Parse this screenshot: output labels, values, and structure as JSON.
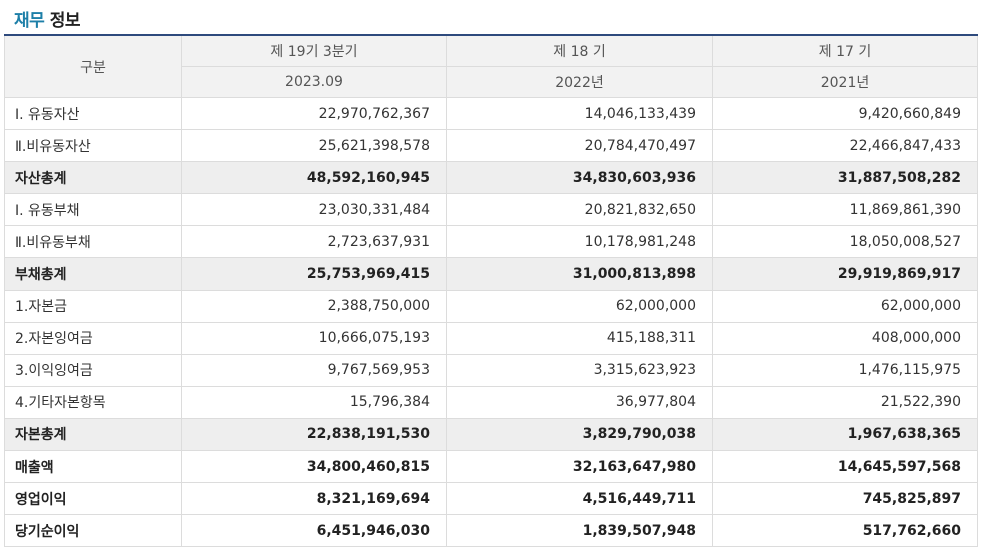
{
  "section_title": {
    "accent": "재무",
    "rest": " 정보"
  },
  "table": {
    "corner_label": "구분",
    "periods": [
      {
        "name": "제 19기 3분기",
        "date": "2023.09"
      },
      {
        "name": "제 18 기",
        "date": "2022년"
      },
      {
        "name": "제 17 기",
        "date": "2021년"
      }
    ],
    "rows": [
      {
        "label": "Ⅰ. 유동자산",
        "values": [
          "22,970,762,367",
          "14,046,133,439",
          "9,420,660,849"
        ],
        "style": "normal"
      },
      {
        "label": "Ⅱ.비유동자산",
        "values": [
          "25,621,398,578",
          "20,784,470,497",
          "22,466,847,433"
        ],
        "style": "normal"
      },
      {
        "label": "자산총계",
        "values": [
          "48,592,160,945",
          "34,830,603,936",
          "31,887,508,282"
        ],
        "style": "total"
      },
      {
        "label": "Ⅰ. 유동부채",
        "values": [
          "23,030,331,484",
          "20,821,832,650",
          "11,869,861,390"
        ],
        "style": "normal"
      },
      {
        "label": "Ⅱ.비유동부채",
        "values": [
          "2,723,637,931",
          "10,178,981,248",
          "18,050,008,527"
        ],
        "style": "normal"
      },
      {
        "label": "부채총계",
        "values": [
          "25,753,969,415",
          "31,000,813,898",
          "29,919,869,917"
        ],
        "style": "total"
      },
      {
        "label": "1.자본금",
        "values": [
          "2,388,750,000",
          "62,000,000",
          "62,000,000"
        ],
        "style": "normal"
      },
      {
        "label": "2.자본잉여금",
        "values": [
          "10,666,075,193",
          "415,188,311",
          "408,000,000"
        ],
        "style": "normal"
      },
      {
        "label": "3.이익잉여금",
        "values": [
          "9,767,569,953",
          "3,315,623,923",
          "1,476,115,975"
        ],
        "style": "normal"
      },
      {
        "label": "4.기타자본항목",
        "values": [
          "15,796,384",
          "36,977,804",
          "21,522,390"
        ],
        "style": "normal"
      },
      {
        "label": "자본총계",
        "values": [
          "22,838,191,530",
          "3,829,790,038",
          "1,967,638,365"
        ],
        "style": "total"
      },
      {
        "label": "매출액",
        "values": [
          "34,800,460,815",
          "32,163,647,980",
          "14,645,597,568"
        ],
        "style": "bold"
      },
      {
        "label": "영업이익",
        "values": [
          "8,321,169,694",
          "4,516,449,711",
          "745,825,897"
        ],
        "style": "bold"
      },
      {
        "label": "당기순이익",
        "values": [
          "6,451,946,030",
          "1,839,507,948",
          "517,762,660"
        ],
        "style": "bold"
      }
    ]
  },
  "colors": {
    "accent": "#1d7fa8",
    "header_border": "#2e4a7d",
    "header_bg": "#f2f2f2",
    "total_bg": "#eeeeee"
  }
}
